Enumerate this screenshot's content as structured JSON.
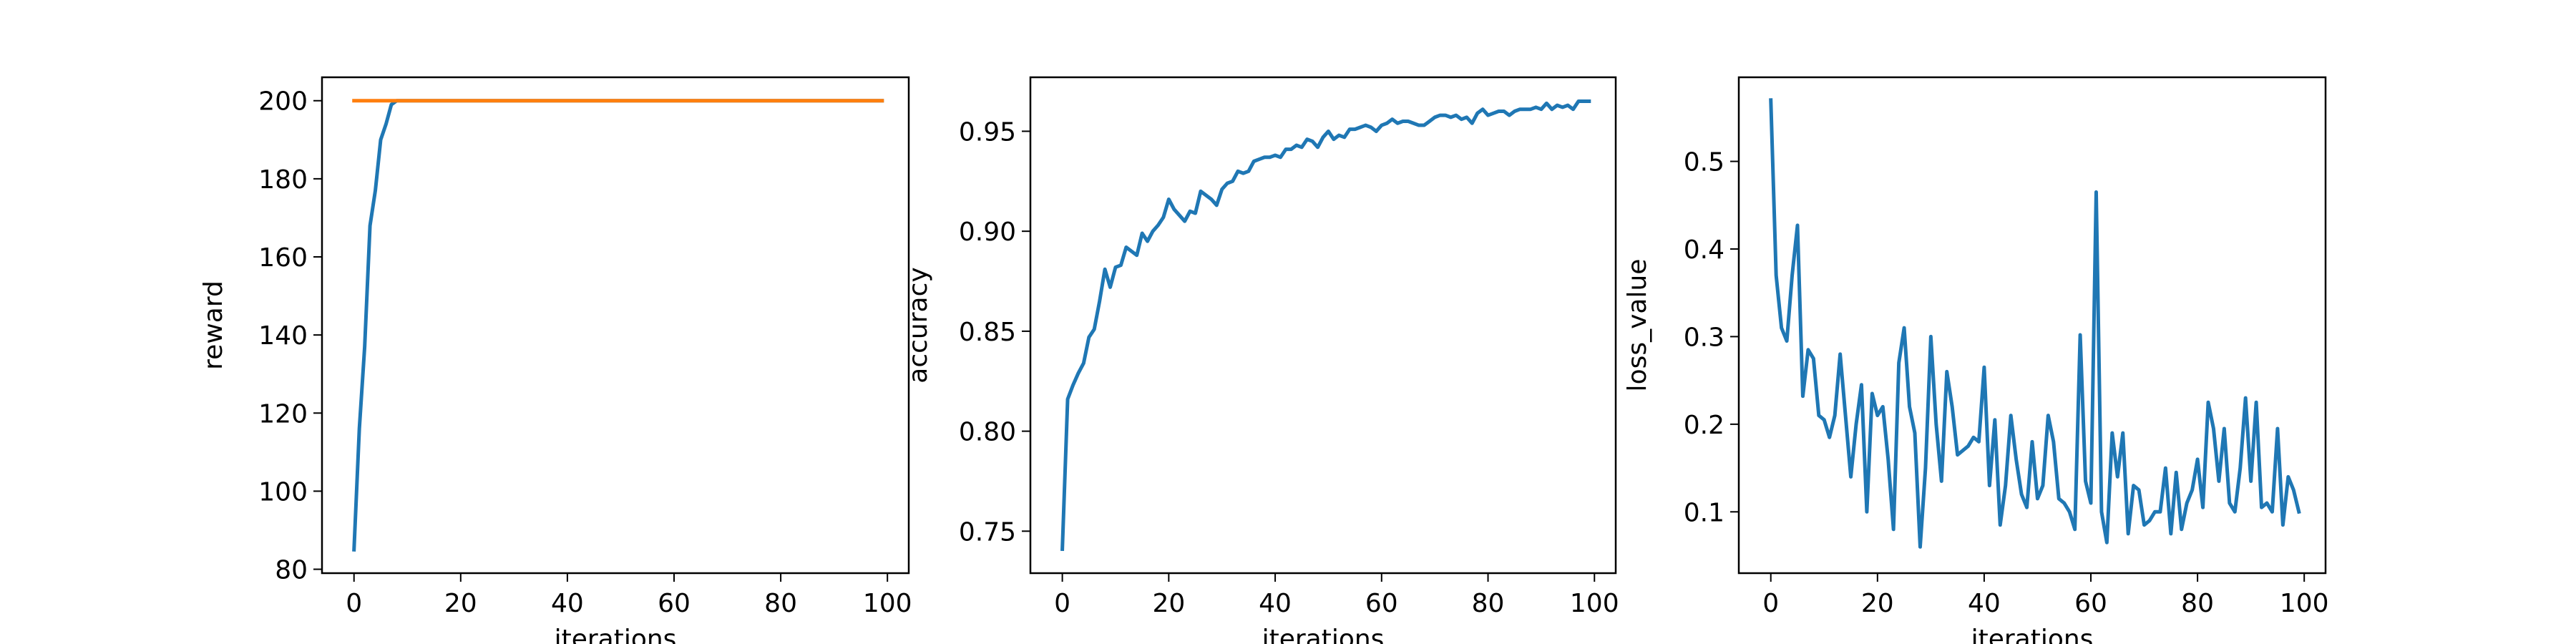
{
  "colors": {
    "series1": "#1f77b4",
    "series2": "#ff7f0e",
    "axes": "#000000",
    "background": "#ffffff"
  },
  "chart_data": [
    {
      "type": "line",
      "title": "",
      "xlabel": "iterations",
      "ylabel": "reward",
      "xlim": [
        -6,
        104
      ],
      "ylim": [
        79,
        206
      ],
      "xticks": [
        0,
        20,
        40,
        60,
        80,
        100
      ],
      "xtick_labels": [
        "0",
        "20",
        "40",
        "60",
        "80",
        "100"
      ],
      "yticks": [
        80,
        100,
        120,
        140,
        160,
        180,
        200
      ],
      "ytick_labels": [
        "80",
        "100",
        "120",
        "140",
        "160",
        "180",
        "200"
      ],
      "grid": false,
      "series": [
        {
          "color": "#1f77b4",
          "x": [
            0,
            1,
            2,
            3,
            4,
            5,
            6,
            7,
            8,
            9,
            10,
            20,
            40,
            60,
            80,
            99
          ],
          "y": [
            85,
            116,
            137,
            168,
            177,
            190,
            194,
            199,
            200,
            200,
            200,
            200,
            200,
            200,
            200,
            200
          ]
        },
        {
          "color": "#ff7f0e",
          "x": [
            0,
            99
          ],
          "y": [
            200,
            200
          ]
        }
      ]
    },
    {
      "type": "line",
      "title": "",
      "xlabel": "iterations",
      "ylabel": "accuracy",
      "xlim": [
        -6,
        104
      ],
      "ylim": [
        0.729,
        0.977
      ],
      "xticks": [
        0,
        20,
        40,
        60,
        80,
        100
      ],
      "xtick_labels": [
        "0",
        "20",
        "40",
        "60",
        "80",
        "100"
      ],
      "yticks": [
        0.75,
        0.8,
        0.85,
        0.9,
        0.95
      ],
      "ytick_labels": [
        "0.75",
        "0.80",
        "0.85",
        "0.90",
        "0.95"
      ],
      "grid": false,
      "series": [
        {
          "color": "#1f77b4",
          "x": [
            0,
            1,
            2,
            3,
            4,
            5,
            6,
            7,
            8,
            9,
            10,
            11,
            12,
            13,
            14,
            15,
            16,
            17,
            18,
            19,
            20,
            21,
            22,
            23,
            24,
            25,
            26,
            27,
            28,
            29,
            30,
            31,
            32,
            33,
            34,
            35,
            36,
            37,
            38,
            39,
            40,
            41,
            42,
            43,
            44,
            45,
            46,
            47,
            48,
            49,
            50,
            51,
            52,
            53,
            54,
            55,
            56,
            57,
            58,
            59,
            60,
            61,
            62,
            63,
            64,
            65,
            66,
            67,
            68,
            69,
            70,
            71,
            72,
            73,
            74,
            75,
            76,
            77,
            78,
            79,
            80,
            81,
            82,
            83,
            84,
            85,
            86,
            87,
            88,
            89,
            90,
            91,
            92,
            93,
            94,
            95,
            96,
            97,
            98,
            99
          ],
          "y": [
            0.741,
            0.816,
            0.823,
            0.829,
            0.834,
            0.847,
            0.851,
            0.865,
            0.881,
            0.872,
            0.882,
            0.883,
            0.892,
            0.89,
            0.888,
            0.899,
            0.895,
            0.9,
            0.903,
            0.907,
            0.916,
            0.911,
            0.908,
            0.905,
            0.91,
            0.909,
            0.92,
            0.918,
            0.916,
            0.913,
            0.921,
            0.924,
            0.925,
            0.93,
            0.929,
            0.93,
            0.935,
            0.936,
            0.937,
            0.937,
            0.938,
            0.937,
            0.941,
            0.941,
            0.943,
            0.942,
            0.946,
            0.945,
            0.942,
            0.947,
            0.95,
            0.946,
            0.948,
            0.947,
            0.951,
            0.951,
            0.952,
            0.953,
            0.952,
            0.95,
            0.953,
            0.954,
            0.956,
            0.954,
            0.955,
            0.955,
            0.954,
            0.953,
            0.953,
            0.955,
            0.957,
            0.958,
            0.958,
            0.957,
            0.958,
            0.956,
            0.957,
            0.954,
            0.959,
            0.961,
            0.958,
            0.959,
            0.96,
            0.96,
            0.958,
            0.96,
            0.961,
            0.961,
            0.961,
            0.962,
            0.961,
            0.964,
            0.961,
            0.963,
            0.962,
            0.963,
            0.961,
            0.965,
            0.965,
            0.965
          ]
        }
      ]
    },
    {
      "type": "line",
      "title": "",
      "xlabel": "iterations",
      "ylabel": "loss_value",
      "xlim": [
        -6,
        104
      ],
      "ylim": [
        0.03,
        0.596
      ],
      "xticks": [
        0,
        20,
        40,
        60,
        80,
        100
      ],
      "xtick_labels": [
        "0",
        "20",
        "40",
        "60",
        "80",
        "100"
      ],
      "yticks": [
        0.1,
        0.2,
        0.3,
        0.4,
        0.5
      ],
      "ytick_labels": [
        "0.1",
        "0.2",
        "0.3",
        "0.4",
        "0.5"
      ],
      "grid": false,
      "series": [
        {
          "color": "#1f77b4",
          "x": [
            0,
            1,
            2,
            3,
            4,
            5,
            6,
            7,
            8,
            9,
            10,
            11,
            12,
            13,
            14,
            15,
            16,
            17,
            18,
            19,
            20,
            21,
            22,
            23,
            24,
            25,
            26,
            27,
            28,
            29,
            30,
            31,
            32,
            33,
            34,
            35,
            36,
            37,
            38,
            39,
            40,
            41,
            42,
            43,
            44,
            45,
            46,
            47,
            48,
            49,
            50,
            51,
            52,
            53,
            54,
            55,
            56,
            57,
            58,
            59,
            60,
            61,
            62,
            63,
            64,
            65,
            66,
            67,
            68,
            69,
            70,
            71,
            72,
            73,
            74,
            75,
            76,
            77,
            78,
            79,
            80,
            81,
            82,
            83,
            84,
            85,
            86,
            87,
            88,
            89,
            90,
            91,
            92,
            93,
            94,
            95,
            96,
            97,
            98,
            99
          ],
          "y": [
            0.57,
            0.37,
            0.31,
            0.295,
            0.37,
            0.427,
            0.232,
            0.285,
            0.275,
            0.21,
            0.205,
            0.185,
            0.21,
            0.28,
            0.21,
            0.14,
            0.2,
            0.245,
            0.1,
            0.235,
            0.21,
            0.22,
            0.16,
            0.08,
            0.27,
            0.31,
            0.22,
            0.19,
            0.06,
            0.15,
            0.3,
            0.2,
            0.135,
            0.26,
            0.22,
            0.165,
            0.17,
            0.175,
            0.185,
            0.18,
            0.265,
            0.13,
            0.205,
            0.085,
            0.13,
            0.21,
            0.16,
            0.12,
            0.105,
            0.18,
            0.115,
            0.13,
            0.21,
            0.18,
            0.115,
            0.11,
            0.1,
            0.08,
            0.302,
            0.135,
            0.11,
            0.465,
            0.1,
            0.065,
            0.19,
            0.14,
            0.19,
            0.075,
            0.13,
            0.125,
            0.085,
            0.09,
            0.1,
            0.1,
            0.15,
            0.075,
            0.145,
            0.08,
            0.11,
            0.125,
            0.16,
            0.105,
            0.225,
            0.195,
            0.135,
            0.195,
            0.11,
            0.1,
            0.15,
            0.23,
            0.135,
            0.225,
            0.105,
            0.11,
            0.1,
            0.195,
            0.085,
            0.14,
            0.125,
            0.1
          ]
        }
      ]
    }
  ]
}
